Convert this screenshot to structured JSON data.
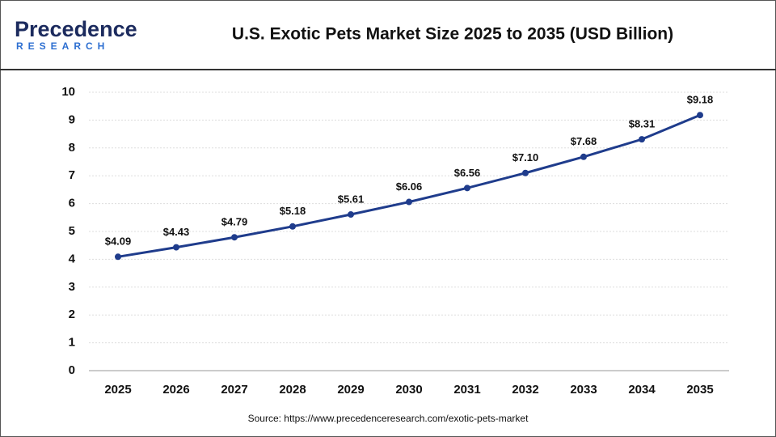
{
  "logo": {
    "name": "Precedence",
    "tagline": "RESEARCH"
  },
  "chart_data": {
    "type": "line",
    "title": "U.S. Exotic Pets Market Size 2025 to 2035 (USD Billion)",
    "source": "Source: https://www.precedenceresearch.com/exotic-pets-market",
    "categories": [
      "2025",
      "2026",
      "2027",
      "2028",
      "2029",
      "2030",
      "2031",
      "2032",
      "2033",
      "2034",
      "2035"
    ],
    "values": [
      4.09,
      4.43,
      4.79,
      5.18,
      5.61,
      6.06,
      6.56,
      7.1,
      7.68,
      8.31,
      9.18
    ],
    "value_labels": [
      "$4.09",
      "$4.43",
      "$4.79",
      "$5.18",
      "$5.61",
      "$6.06",
      "$6.56",
      "$7.10",
      "$7.68",
      "$8.31",
      "$9.18"
    ],
    "color": "#1f3c8c",
    "ylim": [
      0,
      10
    ],
    "yticks": [
      0,
      1,
      2,
      3,
      4,
      5,
      6,
      7,
      8,
      9,
      10
    ],
    "grid": true
  }
}
